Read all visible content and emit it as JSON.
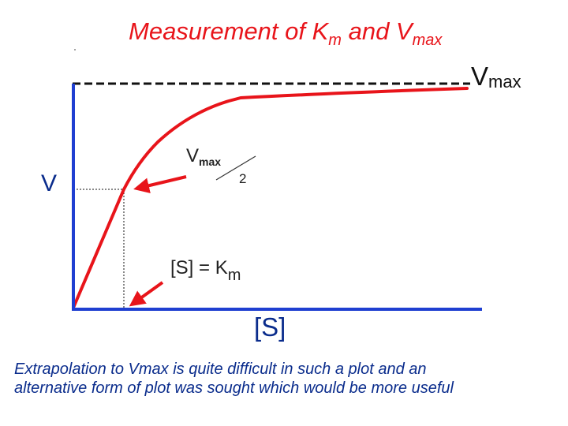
{
  "title": {
    "prefix": "Measurement of K",
    "sub_m": "m",
    "middle": " and V",
    "sub_max": "max"
  },
  "labels": {
    "vmax": {
      "main": "V",
      "sub": "max"
    },
    "y_axis": "V",
    "half_vmax": {
      "main": "V",
      "sub": "max",
      "denominator": "2"
    },
    "s_equals_km": {
      "main": "[S] = K",
      "sub": "m"
    },
    "x_axis": "[S]"
  },
  "caption": {
    "line1": "Extrapolation to Vmax is quite difficult in such a plot and an",
    "line2": "alternative form of plot was sought which would be more useful"
  },
  "colors": {
    "title": "#e8141a",
    "curve": "#e8141a",
    "axes": "#1f3fd1",
    "axis_labels": "#0a2c8c",
    "caption": "#0a2c8c"
  }
}
